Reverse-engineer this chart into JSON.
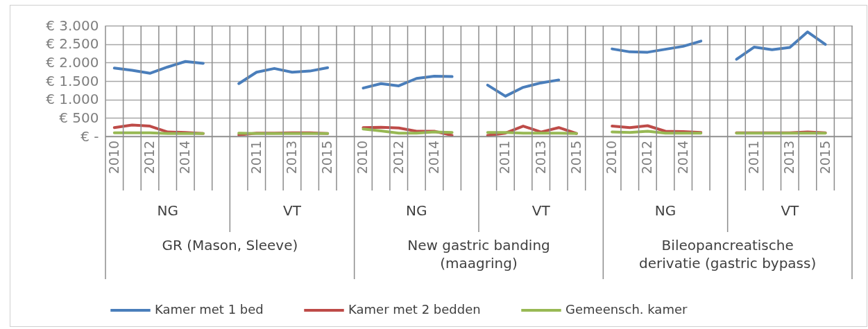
{
  "chart_data": {
    "type": "line",
    "categories": [
      "2010",
      null,
      "2012",
      null,
      "2014",
      null,
      null,
      null,
      "2011",
      null,
      "2013",
      null,
      "2015",
      null,
      "2010",
      null,
      "2012",
      null,
      "2014",
      null,
      null,
      null,
      "2011",
      null,
      "2013",
      null,
      "2015",
      null,
      "2010",
      null,
      "2012",
      null,
      "2014",
      null,
      null,
      null,
      "2011",
      null,
      "2013",
      null,
      "2015",
      null
    ],
    "series": [
      {
        "name": "Kamer met 1 bed",
        "color": "#4a7ebb",
        "values": [
          1850,
          1790,
          1710,
          1880,
          2030,
          1980,
          null,
          1430,
          1740,
          1840,
          1740,
          1770,
          1860,
          null,
          1310,
          1430,
          1370,
          1570,
          1630,
          1620,
          null,
          1390,
          1090,
          1330,
          1450,
          1530,
          null,
          null,
          2370,
          2290,
          2280,
          2360,
          2440,
          2580,
          null,
          2090,
          2420,
          2350,
          2410,
          2830,
          2490,
          null
        ]
      },
      {
        "name": "Kamer met 2 bedden",
        "color": "#be4b48",
        "values": [
          240,
          310,
          280,
          120,
          110,
          80,
          null,
          40,
          90,
          90,
          100,
          100,
          80,
          null,
          240,
          250,
          230,
          140,
          140,
          30,
          null,
          30,
          90,
          280,
          120,
          240,
          80,
          null,
          280,
          240,
          290,
          140,
          130,
          110,
          null,
          100,
          100,
          100,
          100,
          120,
          100,
          null
        ]
      },
      {
        "name": "Gemeensch. kamer",
        "color": "#98b954",
        "values": [
          100,
          100,
          100,
          80,
          80,
          80,
          null,
          90,
          80,
          80,
          80,
          80,
          80,
          null,
          200,
          150,
          90,
          90,
          120,
          110,
          null,
          110,
          110,
          90,
          90,
          90,
          80,
          null,
          120,
          110,
          140,
          90,
          90,
          90,
          null,
          90,
          90,
          90,
          90,
          90,
          90,
          null
        ]
      }
    ],
    "ylim": [
      0,
      3000
    ],
    "yticks": [
      {
        "value": 0,
        "label": "€ -"
      },
      {
        "value": 500,
        "label": "€ 500"
      },
      {
        "value": 1000,
        "label": "€ 1.000"
      },
      {
        "value": 1500,
        "label": "€ 1.500"
      },
      {
        "value": 2000,
        "label": "€ 2.000"
      },
      {
        "value": 2500,
        "label": "€ 2.500"
      },
      {
        "value": 3000,
        "label": "€ 3.000"
      }
    ],
    "annotations": [
      "NG",
      "VT",
      "NG",
      "VT",
      "NG",
      "VT",
      "GR (Mason, Sleeve)",
      "New gastric banding (maagring)",
      "Bileopancreatische derivatie (gastric bypass)"
    ],
    "grid": "y",
    "legend": "bottom",
    "marker": "none",
    "line_style": "solid"
  }
}
